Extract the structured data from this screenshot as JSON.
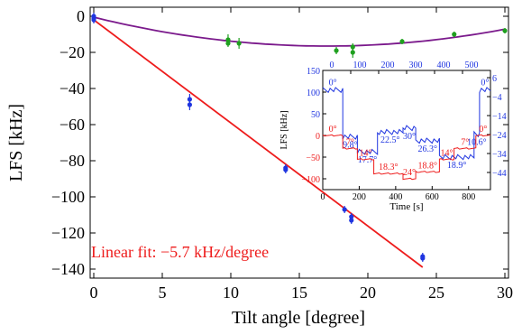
{
  "chart_data": [
    {
      "id": "main",
      "type": "scatter",
      "xlabel": "Tilt angle [degree]",
      "ylabel": "LFS [kHz]",
      "xlim": [
        0,
        30
      ],
      "ylim": [
        -145,
        5
      ],
      "xticks": [
        0,
        5,
        10,
        15,
        20,
        25,
        30
      ],
      "yticks": [
        0,
        -20,
        -40,
        -60,
        -80,
        -100,
        -120,
        -140
      ],
      "grid": false,
      "annotation": "Linear fit: −5.7 kHz/degree",
      "colors": {
        "blue": "#1f35e0",
        "red": "#ee1c1c",
        "purple": "#7b1a8c",
        "green": "#1fa01f"
      },
      "series": [
        {
          "marker": "blue-point",
          "points": [
            [
              0,
              0
            ],
            [
              0,
              -1
            ],
            [
              0,
              -2
            ],
            [
              7,
              -46
            ],
            [
              7,
              -49
            ],
            [
              14,
              -84
            ],
            [
              14,
              -85
            ],
            [
              18.3,
              -107
            ],
            [
              18.8,
              -111
            ],
            [
              18.8,
              -113
            ],
            [
              24,
              -133
            ],
            [
              24,
              -134
            ]
          ],
          "err": [
            2,
            2,
            2,
            3,
            3,
            2,
            2,
            2,
            2,
            2,
            2,
            2
          ]
        },
        {
          "marker": "green-point",
          "points": [
            [
              9.8,
              -13
            ],
            [
              9.8,
              -15
            ],
            [
              10.6,
              -15
            ],
            [
              17.7,
              -19
            ],
            [
              18.9,
              -17
            ],
            [
              18.9,
              -20
            ],
            [
              22.5,
              -14
            ],
            [
              26.3,
              -10
            ],
            [
              30,
              -8
            ]
          ],
          "err": [
            3,
            2,
            3,
            2,
            2,
            3,
            1.5,
            1.5,
            1.5
          ]
        },
        {
          "curve": "linear-fit",
          "x": [
            0,
            24
          ],
          "y": [
            -2,
            -139
          ]
        },
        {
          "curve": "parabola-fit",
          "x_min": 17,
          "y_min": -16.5,
          "y_at_0": -0.5
        }
      ]
    },
    {
      "id": "inset",
      "type": "line",
      "xlabel": "Time [s]",
      "ylabel": "LFS [kHz]",
      "xlim": [
        0,
        920
      ],
      "ylim": [
        -125,
        150
      ],
      "xticks": [
        0,
        200,
        400,
        600,
        800
      ],
      "yticks": [
        150,
        100,
        50,
        0,
        -50,
        -100
      ],
      "top_xticks": [
        0,
        100,
        200,
        300,
        400,
        500
      ],
      "right_yticks": [
        "6",
        "−4",
        "−14",
        "−24",
        "−34",
        "−44"
      ],
      "series": [
        {
          "color": "blue",
          "segments": [
            [
              0,
              110,
              105
            ],
            [
              110,
              190,
              -3
            ],
            [
              190,
              300,
              -38
            ],
            [
              300,
              440,
              8
            ],
            [
              440,
              510,
              17
            ],
            [
              510,
              640,
              -12
            ],
            [
              640,
              830,
              -50
            ],
            [
              830,
              860,
              3
            ],
            [
              860,
              920,
              105
            ]
          ],
          "labels": [
            "0°",
            "9.8°",
            "17.7°",
            "22.5°",
            "30°",
            "26.3°",
            "18.9°",
            "10.6°",
            "0°"
          ]
        },
        {
          "color": "red",
          "segments": [
            [
              0,
              110,
              0
            ],
            [
              110,
              190,
              -30
            ],
            [
              190,
              280,
              -55
            ],
            [
              280,
              440,
              -88
            ],
            [
              440,
              510,
              -100
            ],
            [
              510,
              640,
              -84
            ],
            [
              640,
              720,
              -55
            ],
            [
              720,
              840,
              -30
            ],
            [
              840,
              920,
              0
            ]
          ],
          "labels": [
            "0°",
            "7°",
            "14°",
            "18.3°",
            "24°",
            "18.8°",
            "14°",
            "7°",
            "0°"
          ]
        }
      ]
    }
  ]
}
